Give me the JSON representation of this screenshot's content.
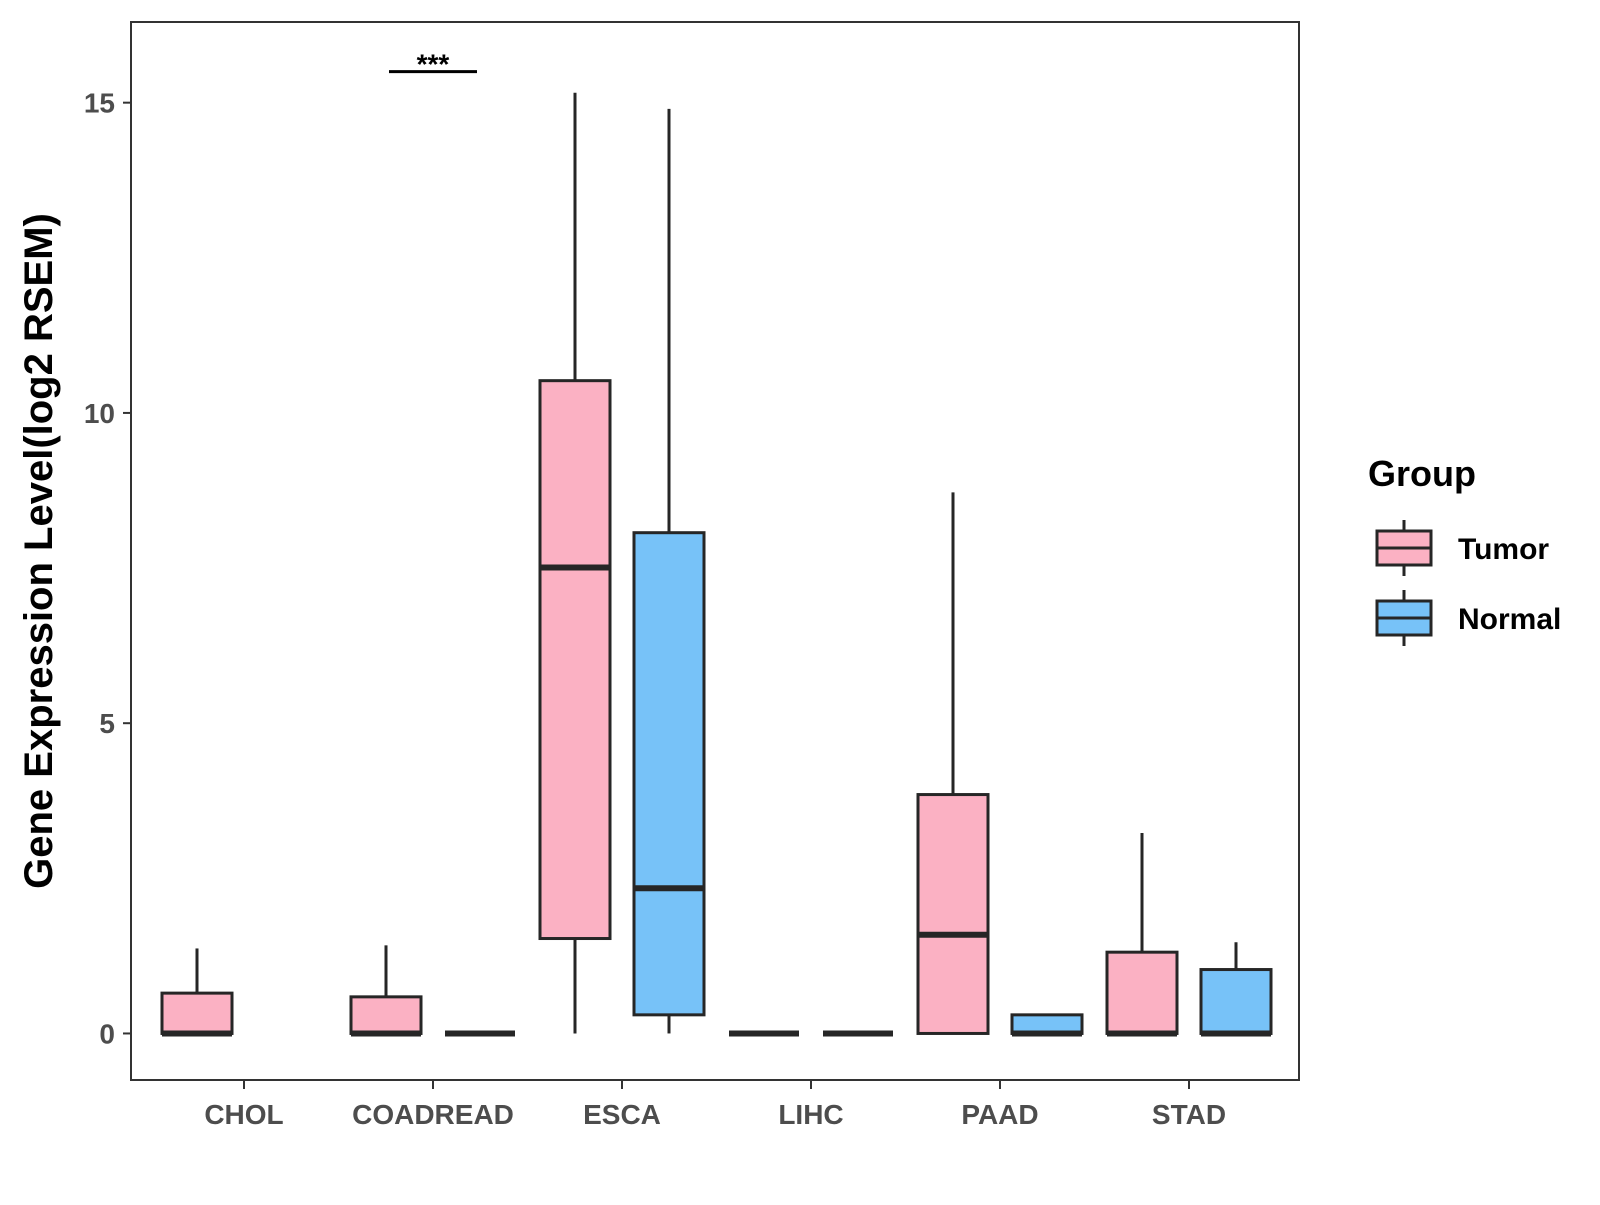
{
  "chart_data": {
    "type": "boxplot",
    "ylabel": "Gene Expression Level(log2 RSEM)",
    "xlabel": "",
    "ylim": [
      -0.75,
      16.3
    ],
    "yticks": [
      0,
      5,
      10,
      15
    ],
    "grid": false,
    "categories": [
      "CHOL",
      "COADREAD",
      "ESCA",
      "LIHC",
      "PAAD",
      "STAD"
    ],
    "legend": {
      "title": "Group",
      "placement": "right",
      "entries": [
        "Tumor",
        "Normal"
      ]
    },
    "series": [
      {
        "name": "Tumor",
        "color": "#FBB1C3",
        "boxes": [
          {
            "category": "CHOL",
            "min": 0,
            "q1": 0,
            "median": 0,
            "q3": 0.65,
            "max": 1.37
          },
          {
            "category": "COADREAD",
            "min": 0,
            "q1": 0,
            "median": 0,
            "q3": 0.59,
            "max": 1.42
          },
          {
            "category": "ESCA",
            "min": 0,
            "q1": 1.53,
            "median": 7.51,
            "q3": 10.52,
            "max": 15.16
          },
          {
            "category": "LIHC",
            "min": 0,
            "q1": 0,
            "median": 0,
            "q3": 0,
            "max": 0
          },
          {
            "category": "PAAD",
            "min": 0,
            "q1": 0,
            "median": 1.59,
            "q3": 3.85,
            "max": 8.72
          },
          {
            "category": "STAD",
            "min": 0,
            "q1": 0,
            "median": 0,
            "q3": 1.31,
            "max": 3.23
          }
        ]
      },
      {
        "name": "Normal",
        "color": "#77C2F8",
        "boxes": [
          {
            "category": "COADREAD",
            "min": 0,
            "q1": 0,
            "median": 0,
            "q3": 0,
            "max": 0
          },
          {
            "category": "ESCA",
            "min": 0,
            "q1": 0.3,
            "median": 2.34,
            "q3": 8.07,
            "max": 14.9
          },
          {
            "category": "LIHC",
            "min": 0,
            "q1": 0,
            "median": 0,
            "q3": 0,
            "max": 0
          },
          {
            "category": "PAAD",
            "min": 0,
            "q1": 0,
            "median": 0,
            "q3": 0.3,
            "max": 0.3
          },
          {
            "category": "STAD",
            "min": 0,
            "q1": 0,
            "median": 0,
            "q3": 1.03,
            "max": 1.47
          }
        ]
      }
    ],
    "annotations": [
      {
        "category": "COADREAD",
        "text": "***",
        "y": 15.5
      }
    ]
  }
}
